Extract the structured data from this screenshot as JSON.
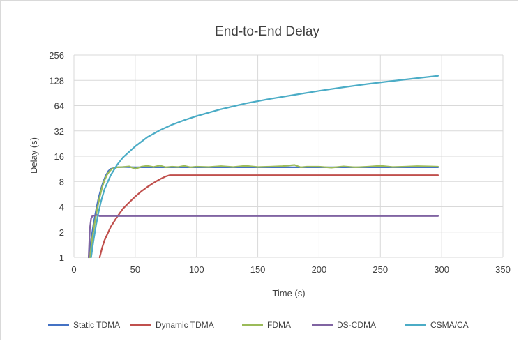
{
  "chart_data": {
    "type": "line",
    "title": "End-to-End Delay",
    "xlabel": "Time (s)",
    "ylabel": "Delay (s)",
    "xlim": [
      0,
      350
    ],
    "ylim": [
      1,
      256
    ],
    "yscale": "log2",
    "x_ticks": [
      "0",
      "50",
      "100",
      "150",
      "200",
      "250",
      "300",
      "350"
    ],
    "y_ticks": [
      "1",
      "2",
      "4",
      "8",
      "16",
      "32",
      "64",
      "128",
      "256"
    ],
    "grid": true,
    "legend_position": "bottom",
    "series": [
      {
        "name": "Static TDMA",
        "color": "#4472c4",
        "x": [
          12,
          14,
          16,
          18,
          20,
          22,
          24,
          26,
          28,
          30,
          35,
          40,
          50,
          60,
          100,
          150,
          200,
          250,
          297
        ],
        "y": [
          1,
          1.6,
          2.5,
          3.6,
          5,
          6.5,
          8,
          9.4,
          10.6,
          11.3,
          11.8,
          11.9,
          11.8,
          11.8,
          11.8,
          11.8,
          11.8,
          11.8,
          11.8
        ]
      },
      {
        "name": "Dynamic TDMA",
        "color": "#c0504d",
        "x": [
          21,
          23,
          25,
          30,
          35,
          40,
          45,
          50,
          55,
          60,
          65,
          70,
          75,
          78,
          100,
          150,
          200,
          250,
          297
        ],
        "y": [
          1,
          1.3,
          1.6,
          2.3,
          3,
          3.8,
          4.5,
          5.3,
          6.1,
          6.9,
          7.7,
          8.5,
          9.2,
          9.5,
          9.5,
          9.5,
          9.5,
          9.5,
          9.5
        ]
      },
      {
        "name": "FDMA",
        "color": "#9bbb59",
        "x": [
          13,
          15,
          17,
          19,
          21,
          23,
          25,
          27,
          29,
          31,
          35,
          40,
          45,
          50,
          55,
          60,
          65,
          70,
          75,
          80,
          85,
          90,
          95,
          100,
          110,
          120,
          130,
          140,
          150,
          160,
          170,
          180,
          185,
          190,
          200,
          210,
          220,
          230,
          240,
          250,
          260,
          270,
          280,
          290,
          297
        ],
        "y": [
          1,
          1.7,
          2.6,
          3.8,
          5.2,
          6.8,
          8.3,
          9.6,
          10.6,
          11.3,
          11.8,
          11.9,
          12.1,
          11.3,
          12.0,
          12.3,
          11.9,
          12.4,
          11.8,
          12.0,
          11.9,
          12.3,
          11.8,
          12.0,
          11.9,
          12.2,
          11.9,
          12.3,
          11.9,
          12.0,
          12.2,
          12.6,
          11.8,
          12.0,
          12.0,
          11.7,
          12.1,
          11.8,
          12.0,
          12.3,
          11.9,
          12.0,
          12.2,
          12.1,
          12.0
        ]
      },
      {
        "name": "DS-CDMA",
        "color": "#8064a2",
        "x": [
          12,
          12.5,
          13,
          14,
          15,
          17,
          19,
          21,
          25,
          50,
          100,
          150,
          200,
          250,
          297
        ],
        "y": [
          1,
          1.5,
          2.2,
          2.9,
          3.1,
          3.15,
          3.2,
          3.1,
          3.1,
          3.1,
          3.1,
          3.1,
          3.1,
          3.1,
          3.1
        ]
      },
      {
        "name": "CSMA/CA",
        "color": "#4bacc6",
        "x": [
          14,
          16,
          18,
          20,
          22,
          25,
          30,
          35,
          40,
          50,
          60,
          70,
          80,
          90,
          100,
          120,
          140,
          160,
          180,
          200,
          220,
          240,
          260,
          280,
          297
        ],
        "y": [
          1,
          1.6,
          2.4,
          3.4,
          4.6,
          6.5,
          9.5,
          12.5,
          15.5,
          21,
          27,
          32.5,
          38,
          43,
          48,
          58,
          68,
          77,
          86,
          96,
          106,
          116,
          126,
          136,
          145
        ]
      }
    ]
  }
}
